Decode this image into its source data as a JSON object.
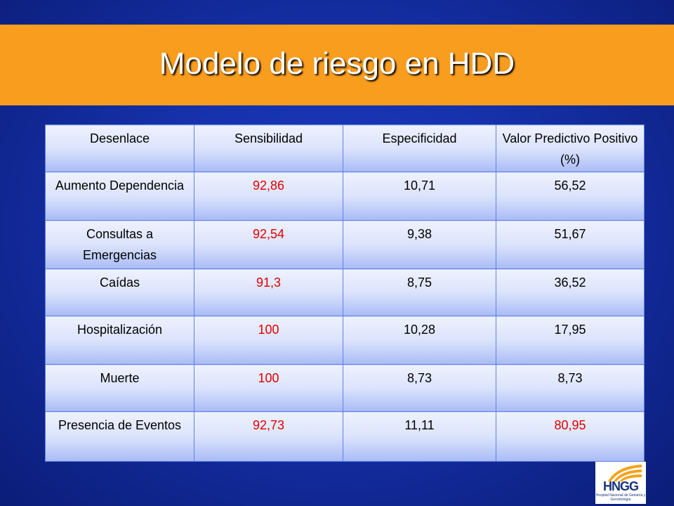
{
  "slide": {
    "title": "Modelo de riesgo en HDD"
  },
  "table": {
    "headers": [
      "Desenlace",
      "Sensibilidad",
      "Especificidad",
      "Valor Predictivo Positivo (%)"
    ],
    "rows": [
      [
        "Aumento Dependencia",
        "92,86",
        "10,71",
        "56,52"
      ],
      [
        "Consultas a Emergencias",
        "92,54",
        "9,38",
        "51,67"
      ],
      [
        "Caídas",
        "91,3",
        "8,75",
        "36,52"
      ],
      [
        "Hospitalización",
        "100",
        "10,28",
        "17,95"
      ],
      [
        "Muerte",
        "100",
        "8,73",
        "8,73"
      ],
      [
        "Presencia de Eventos",
        "92,73",
        "11,11",
        "80,95"
      ]
    ],
    "highlight_color": "#e00000"
  },
  "logo": {
    "text": "HNGG",
    "subtext": "Hospital Nacional de Geriatría y Gerontología"
  },
  "colors": {
    "banner": "#f99d1e",
    "background": "#1530a8",
    "cell_fill_top": "#eef2fe",
    "cell_fill_bottom": "#a9bbf6",
    "cell_border": "#5f7fe6"
  }
}
